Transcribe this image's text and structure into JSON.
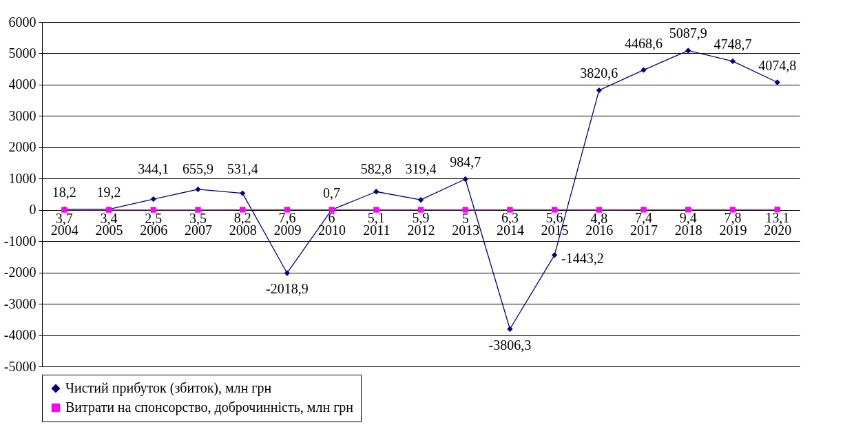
{
  "chart_data": {
    "type": "line",
    "categories": [
      "2004",
      "2005",
      "2006",
      "2007",
      "2008",
      "2009",
      "2010",
      "2011",
      "2012",
      "2013",
      "2014",
      "2015",
      "2016",
      "2017",
      "2018",
      "2019",
      "2020"
    ],
    "series": [
      {
        "name": "Чистий прибуток (збиток), млн грн",
        "color": "#000080",
        "marker": "diamond",
        "values": [
          18.2,
          19.2,
          344.1,
          655.9,
          531.4,
          -2018.9,
          0.7,
          582.8,
          319.4,
          984.7,
          -3806.3,
          -1443.2,
          3820.6,
          4468.6,
          5087.9,
          4748.7,
          4074.8
        ],
        "value_labels": [
          "18,2",
          "19,2",
          "344,1",
          "655,9",
          "531,4",
          "-2018,9",
          "0,7",
          "582,8",
          "319,4",
          "984,7",
          "-3806,3",
          "-1443,2",
          "3820,6",
          "4468,6",
          "5087,9",
          "4748,7",
          "4074,8"
        ]
      },
      {
        "name": "Витрати на спонсорство, доброчинність, млн грн",
        "color": "#ff00ff",
        "marker": "square",
        "values": [
          3.7,
          3.4,
          2.5,
          3.5,
          8.2,
          7.6,
          6,
          5.1,
          5.9,
          5,
          6.3,
          5.6,
          4.8,
          7.4,
          9.4,
          7.8,
          13.1
        ],
        "value_labels": [
          "3,7",
          "3,4",
          "2,5",
          "3,5",
          "8,2",
          "7,6",
          "6",
          "5,1",
          "5,9",
          "5",
          "6,3",
          "5,6",
          "4,8",
          "7,4",
          "9,4",
          "7,8",
          "13,1"
        ]
      }
    ],
    "ylim": [
      -5000,
      6000
    ],
    "yticks": [
      -5000,
      -4000,
      -3000,
      -2000,
      -1000,
      0,
      1000,
      2000,
      3000,
      4000,
      5000,
      6000
    ],
    "grid": "y",
    "legend": "bottom"
  }
}
